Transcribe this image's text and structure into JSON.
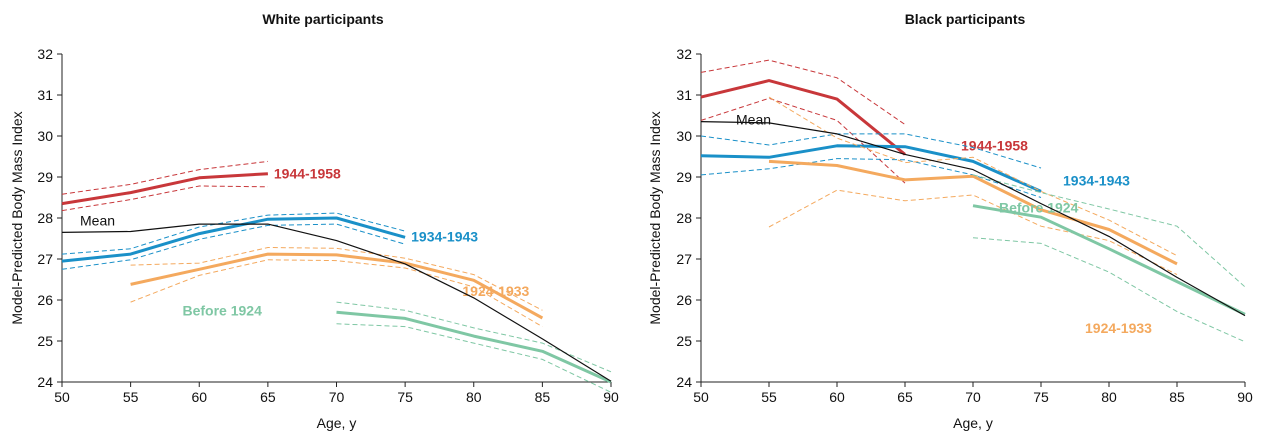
{
  "chart_data": [
    {
      "type": "line",
      "title": "White participants",
      "xlabel": "Age, y",
      "ylabel": "Model-Predicted Body Mass Index",
      "xlim": [
        50,
        90
      ],
      "ylim": [
        24,
        32
      ],
      "xticks": [
        "50",
        "55",
        "60",
        "65",
        "70",
        "75",
        "80",
        "85",
        "90"
      ],
      "yticks": [
        "24",
        "25",
        "26",
        "27",
        "28",
        "29",
        "30",
        "31",
        "32"
      ],
      "grid": false,
      "series": [
        {
          "name": "1944-1958",
          "color": "#c8373a",
          "x": [
            50,
            55,
            60,
            65
          ],
          "values": [
            28.35,
            28.62,
            28.98,
            29.08
          ],
          "ci_upper": [
            28.58,
            28.82,
            29.18,
            29.38
          ],
          "ci_lower": [
            28.18,
            28.45,
            28.78,
            28.76
          ]
        },
        {
          "name": "1934-1943",
          "color": "#1a90c8",
          "x": [
            50,
            55,
            60,
            65,
            70,
            75
          ],
          "values": [
            26.95,
            27.12,
            27.62,
            27.97,
            28.0,
            27.53
          ],
          "ci_upper": [
            27.12,
            27.25,
            27.78,
            28.07,
            28.12,
            27.68
          ],
          "ci_lower": [
            26.75,
            26.98,
            27.48,
            27.82,
            27.85,
            27.36
          ]
        },
        {
          "name": "1924-1933",
          "color": "#f4a95e",
          "x": [
            55,
            60,
            65,
            70,
            75,
            80,
            85
          ],
          "values": [
            26.38,
            26.75,
            27.12,
            27.1,
            26.9,
            26.48,
            25.56
          ],
          "ci_upper": [
            26.85,
            26.9,
            27.28,
            27.26,
            27.02,
            26.62,
            25.75
          ],
          "ci_lower": [
            25.95,
            26.6,
            26.98,
            26.96,
            26.78,
            26.32,
            25.35
          ]
        },
        {
          "name": "Before 1924",
          "color": "#7fc7a4",
          "x": [
            70,
            75,
            80,
            85,
            90
          ],
          "values": [
            25.7,
            25.55,
            25.12,
            24.75,
            24.0
          ],
          "ci_upper": [
            25.95,
            25.75,
            25.32,
            24.95,
            24.25
          ],
          "ci_lower": [
            25.42,
            25.35,
            24.95,
            24.55,
            23.75
          ]
        },
        {
          "name": "Mean",
          "color": "#111111",
          "x": [
            50,
            55,
            60,
            65,
            70,
            75,
            80,
            85,
            90
          ],
          "values": [
            27.65,
            27.67,
            27.85,
            27.85,
            27.45,
            26.88,
            26.05,
            25.05,
            24.02
          ]
        }
      ]
    },
    {
      "type": "line",
      "title": "Black participants",
      "xlabel": "Age, y",
      "ylabel": "Model-Predicted Body Mass Index",
      "xlim": [
        50,
        90
      ],
      "ylim": [
        24,
        32
      ],
      "xticks": [
        "50",
        "55",
        "60",
        "65",
        "70",
        "75",
        "80",
        "85",
        "90"
      ],
      "yticks": [
        "24",
        "25",
        "26",
        "27",
        "28",
        "29",
        "30",
        "31",
        "32"
      ],
      "grid": false,
      "series": [
        {
          "name": "1944-1958",
          "color": "#c8373a",
          "x": [
            50,
            55,
            60,
            65
          ],
          "values": [
            30.95,
            31.35,
            30.9,
            29.55
          ],
          "ci_upper": [
            31.55,
            31.85,
            31.42,
            30.28
          ],
          "ci_lower": [
            30.38,
            30.92,
            30.38,
            28.85
          ]
        },
        {
          "name": "1934-1943",
          "color": "#1a90c8",
          "x": [
            50,
            55,
            60,
            65,
            70,
            75
          ],
          "values": [
            29.52,
            29.48,
            29.76,
            29.74,
            29.38,
            28.65
          ],
          "ci_upper": [
            30.0,
            29.78,
            30.05,
            30.05,
            29.72,
            29.22
          ],
          "ci_lower": [
            29.05,
            29.2,
            29.45,
            29.42,
            29.05,
            28.5
          ]
        },
        {
          "name": "1924-1933",
          "color": "#f4a95e",
          "x": [
            55,
            60,
            65,
            70,
            75,
            80,
            85
          ],
          "values": [
            29.38,
            29.28,
            28.93,
            29.02,
            28.2,
            27.72,
            26.88
          ],
          "ci_upper": [
            30.95,
            29.95,
            29.35,
            29.48,
            28.65,
            27.95,
            27.08
          ],
          "ci_lower": [
            27.78,
            28.68,
            28.42,
            28.56,
            27.8,
            27.45,
            26.62
          ]
        },
        {
          "name": "Before 1924",
          "color": "#7fc7a4",
          "x": [
            70,
            75,
            80,
            85,
            90
          ],
          "values": [
            28.3,
            28.02,
            27.25,
            26.45,
            25.65
          ],
          "ci_upper": [
            29.05,
            28.62,
            28.22,
            27.8,
            26.32
          ],
          "ci_lower": [
            27.52,
            27.38,
            26.68,
            25.72,
            24.98
          ]
        },
        {
          "name": "Mean",
          "color": "#111111",
          "x": [
            50,
            55,
            60,
            65,
            70,
            75,
            80,
            85,
            90
          ],
          "values": [
            30.35,
            30.32,
            30.05,
            29.55,
            29.18,
            28.35,
            27.55,
            26.55,
            25.62
          ]
        }
      ]
    }
  ]
}
